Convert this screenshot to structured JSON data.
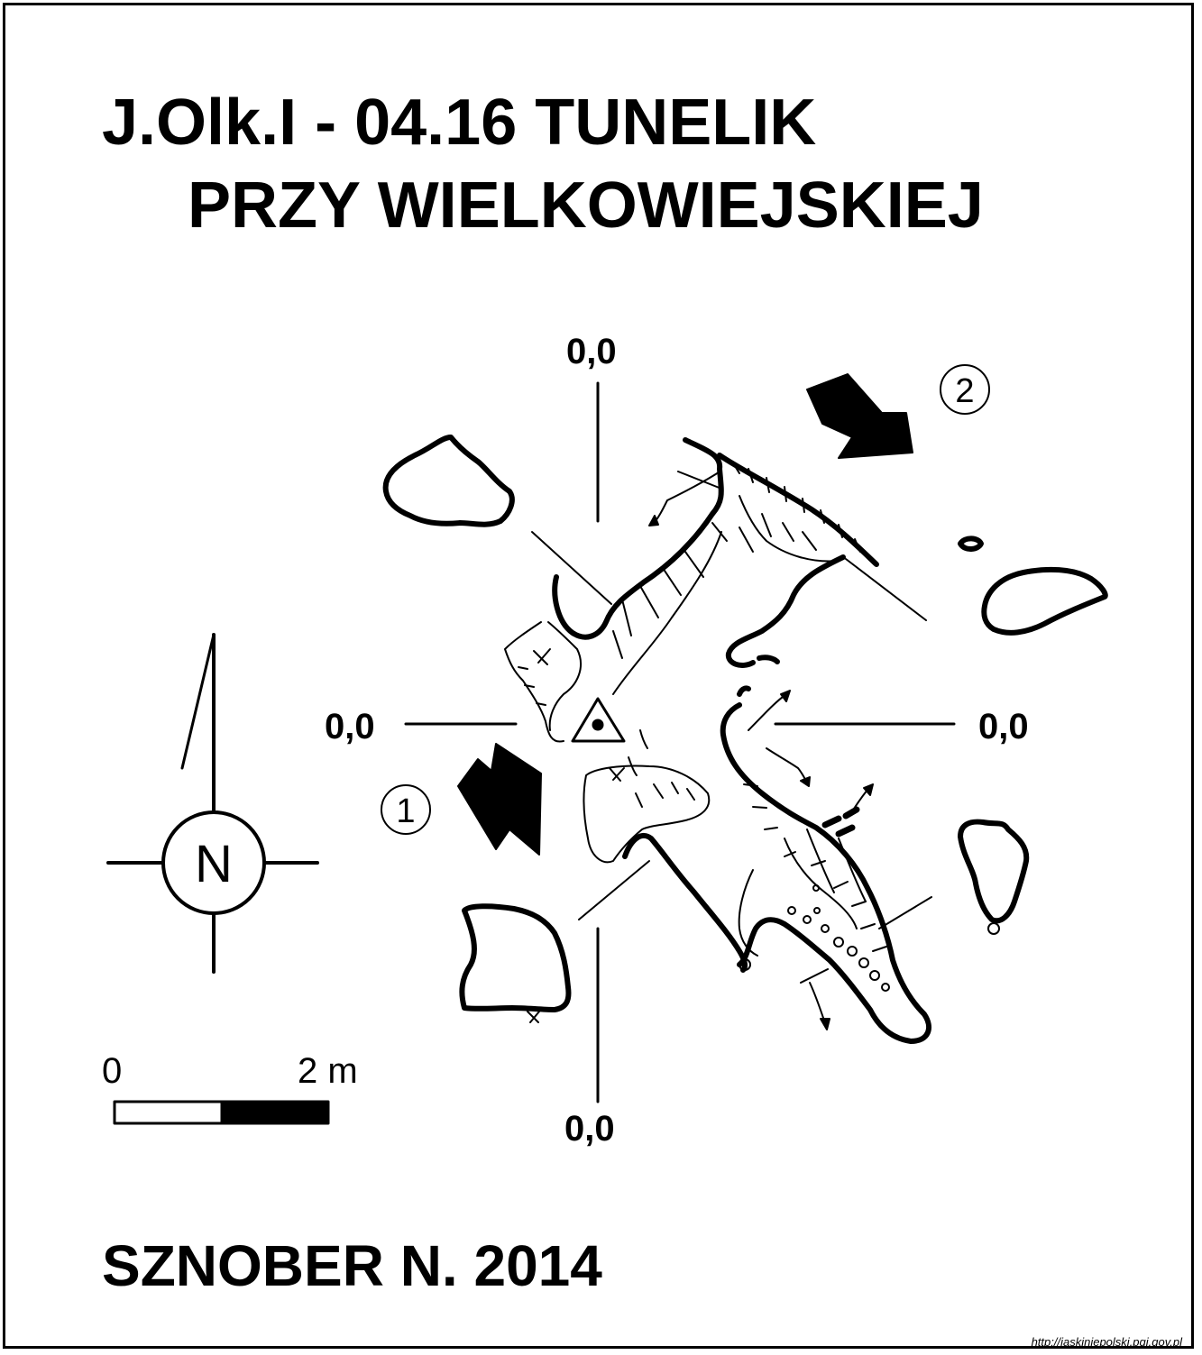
{
  "title": {
    "line1": "J.Olk.I - 04.16  TUNELIK",
    "line2": "PRZY WIELKOWIEJSKIEJ"
  },
  "section_labels": {
    "top": "0,0",
    "left": "0,0",
    "right": "0,0",
    "bottom": "0,0"
  },
  "entrances": [
    "1",
    "2"
  ],
  "north_arrow": {
    "letter": "N"
  },
  "scale": {
    "start": "0",
    "end": "2 m"
  },
  "author": "SZNOBER N.  2014",
  "source_url": "http://jaskiniepolski.pgi.gov.pl"
}
